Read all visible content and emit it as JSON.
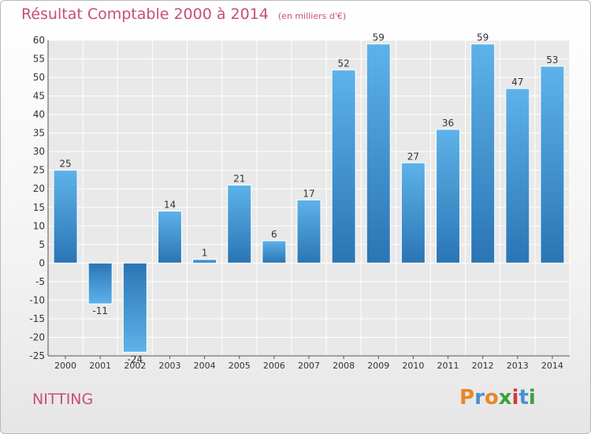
{
  "chart_data": {
    "type": "bar",
    "title": "Résultat Comptable 2000 à 2014",
    "subtitle": "(en milliers d'€)",
    "xlabel": "",
    "ylabel": "",
    "ylim": [
      -25,
      60
    ],
    "ytick_step": 5,
    "grid": true,
    "categories": [
      "2000",
      "2001",
      "2002",
      "2003",
      "2004",
      "2005",
      "2006",
      "2007",
      "2008",
      "2009",
      "2010",
      "2011",
      "2012",
      "2013",
      "2014"
    ],
    "values": [
      25,
      -11,
      -24,
      14,
      1,
      21,
      6,
      17,
      52,
      59,
      27,
      36,
      59,
      47,
      53
    ]
  },
  "commune": "NITTING",
  "logo": {
    "letters": [
      "P",
      "r",
      "o",
      "x",
      "i",
      "t",
      "i"
    ],
    "colors": [
      "#e8862a",
      "#4a8fd0",
      "#e8862a",
      "#3aa13c",
      "#d23a3a",
      "#4a8fd0",
      "#3aa13c"
    ]
  },
  "colors": {
    "bar_light": "#5aaee6",
    "bar_dark": "#2b78b8",
    "title": "#c64f73",
    "grid": "#ffffff",
    "axis": "#555555"
  }
}
